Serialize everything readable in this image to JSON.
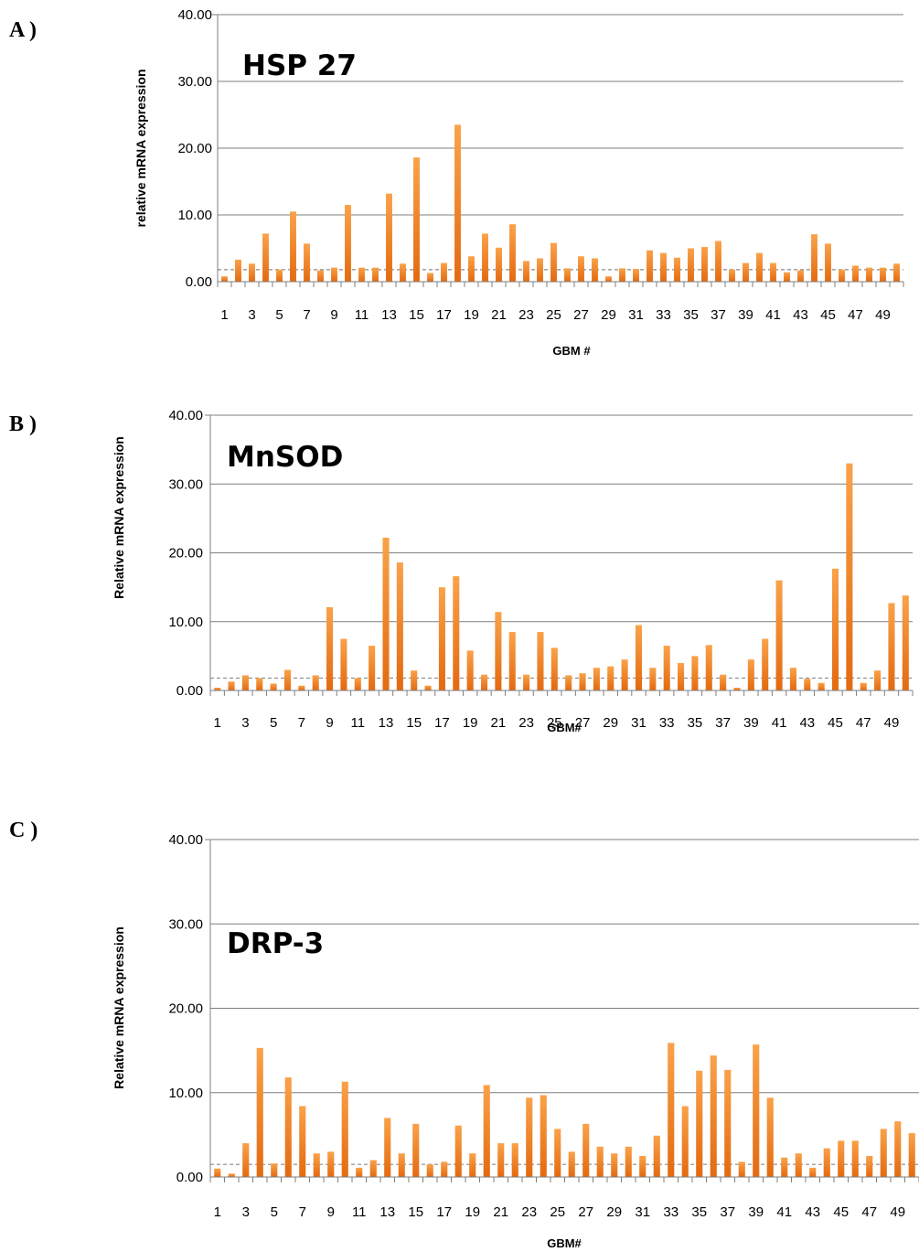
{
  "colors": {
    "bar_light": "#f9a24a",
    "bar_dark": "#e36a10",
    "grid": "#7f7f7f",
    "threshold": "#8a8a8a"
  },
  "chart_data": [
    {
      "panel_label": "A )",
      "type": "bar",
      "title": "HSP 27",
      "xlabel": "GBM #",
      "ylabel": "relative mRNA expression",
      "ylim": [
        0,
        40
      ],
      "yticks": [
        "0.00",
        "10.00",
        "20.00",
        "30.00",
        "40.00"
      ],
      "xtick_labels": [
        "1",
        "3",
        "5",
        "7",
        "9",
        "11",
        "13",
        "15",
        "17",
        "19",
        "21",
        "23",
        "25",
        "27",
        "29",
        "31",
        "33",
        "35",
        "37",
        "39",
        "41",
        "43",
        "45",
        "47",
        "49"
      ],
      "grid": true,
      "threshold": 1.8,
      "categories": [
        1,
        2,
        3,
        4,
        5,
        6,
        7,
        8,
        9,
        10,
        11,
        12,
        13,
        14,
        15,
        16,
        17,
        18,
        19,
        20,
        21,
        22,
        23,
        24,
        25,
        26,
        27,
        28,
        29,
        30,
        31,
        32,
        33,
        34,
        35,
        36,
        37,
        38,
        39,
        40,
        41,
        42,
        43,
        44,
        45,
        46,
        47,
        48,
        49,
        50
      ],
      "values": [
        0.8,
        3.3,
        2.7,
        7.2,
        1.8,
        10.5,
        5.7,
        1.7,
        2.1,
        11.5,
        2.1,
        2.1,
        13.2,
        2.7,
        18.6,
        1.3,
        2.8,
        23.5,
        3.8,
        7.2,
        5.1,
        8.6,
        3.1,
        3.5,
        5.8,
        2.0,
        3.8,
        3.5,
        0.8,
        2.0,
        1.9,
        4.7,
        4.3,
        3.6,
        5.0,
        5.2,
        6.1,
        1.8,
        2.8,
        4.3,
        2.8,
        1.4,
        1.7,
        7.1,
        5.7,
        1.8,
        2.4,
        2.1,
        2.1,
        2.7
      ]
    },
    {
      "panel_label": "B )",
      "type": "bar",
      "title": "MnSOD",
      "xlabel": "GBM#",
      "ylabel": "Relative mRNA expression",
      "ylim": [
        0,
        40
      ],
      "yticks": [
        "0.00",
        "10.00",
        "20.00",
        "30.00",
        "40.00"
      ],
      "xtick_labels": [
        "1",
        "3",
        "5",
        "7",
        "9",
        "11",
        "13",
        "15",
        "17",
        "19",
        "21",
        "23",
        "25",
        "27",
        "29",
        "31",
        "33",
        "35",
        "37",
        "39",
        "41",
        "43",
        "45",
        "47",
        "49"
      ],
      "grid": true,
      "threshold": 1.8,
      "categories": [
        1,
        2,
        3,
        4,
        5,
        6,
        7,
        8,
        9,
        10,
        11,
        12,
        13,
        14,
        15,
        16,
        17,
        18,
        19,
        20,
        21,
        22,
        23,
        24,
        25,
        26,
        27,
        28,
        29,
        30,
        31,
        32,
        33,
        34,
        35,
        36,
        37,
        38,
        39,
        40,
        41,
        42,
        43,
        44,
        45,
        46,
        47,
        48,
        49,
        50
      ],
      "values": [
        0.4,
        1.3,
        2.2,
        1.8,
        1.0,
        3.0,
        0.7,
        2.2,
        12.1,
        7.5,
        1.8,
        6.5,
        22.2,
        18.6,
        2.9,
        0.7,
        15.0,
        16.6,
        5.8,
        2.3,
        11.4,
        8.5,
        2.3,
        8.5,
        6.2,
        2.2,
        2.5,
        3.3,
        3.5,
        4.5,
        9.5,
        3.3,
        6.5,
        4.0,
        5.0,
        6.6,
        2.3,
        0.4,
        4.5,
        7.5,
        16.0,
        3.3,
        1.7,
        1.1,
        17.7,
        33.0,
        1.1,
        2.9,
        12.7,
        13.8
      ]
    },
    {
      "panel_label": "C )",
      "type": "bar",
      "title": "DRP-3",
      "xlabel": "GBM#",
      "ylabel": "Relative mRNA expression",
      "ylim": [
        0,
        40
      ],
      "yticks": [
        "0.00",
        "10.00",
        "20.00",
        "30.00",
        "40.00"
      ],
      "xtick_labels": [
        "1",
        "3",
        "5",
        "7",
        "9",
        "11",
        "13",
        "15",
        "17",
        "19",
        "21",
        "23",
        "25",
        "27",
        "29",
        "31",
        "33",
        "35",
        "37",
        "39",
        "41",
        "43",
        "45",
        "47",
        "49"
      ],
      "grid": true,
      "threshold": 1.5,
      "categories": [
        1,
        2,
        3,
        4,
        5,
        6,
        7,
        8,
        9,
        10,
        11,
        12,
        13,
        14,
        15,
        16,
        17,
        18,
        19,
        20,
        21,
        22,
        23,
        24,
        25,
        26,
        27,
        28,
        29,
        30,
        31,
        32,
        33,
        34,
        35,
        36,
        37,
        38,
        39,
        40,
        41,
        42,
        43,
        44,
        45,
        46,
        47,
        48,
        49,
        50
      ],
      "values": [
        1.0,
        0.4,
        4.0,
        15.3,
        1.6,
        11.8,
        8.4,
        2.8,
        3.0,
        11.3,
        1.1,
        2.0,
        7.0,
        2.8,
        6.3,
        1.5,
        1.8,
        6.1,
        2.8,
        10.9,
        4.0,
        4.0,
        9.4,
        9.7,
        5.7,
        3.0,
        6.3,
        3.6,
        2.8,
        3.6,
        2.5,
        4.9,
        15.9,
        8.4,
        12.6,
        14.4,
        12.7,
        1.8,
        15.7,
        9.4,
        2.3,
        2.8,
        1.1,
        3.4,
        4.3,
        4.3,
        2.5,
        5.7,
        6.6,
        5.2
      ]
    }
  ]
}
